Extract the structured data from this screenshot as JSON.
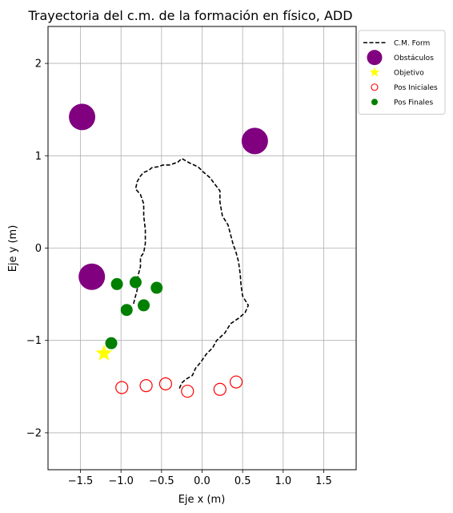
{
  "chart_data": {
    "type": "scatter",
    "title": "Trayectoria del c.m. de la formación en físico, ADD",
    "xlabel": "Eje x (m)",
    "ylabel": "Eje y (m)",
    "xlim": [
      -1.9,
      1.9
    ],
    "ylim": [
      -2.4,
      2.4
    ],
    "xticks": [
      -1.5,
      -1.0,
      -0.5,
      0.0,
      0.5,
      1.0,
      1.5
    ],
    "xtick_labels": [
      "−1.5",
      "−1.0",
      "−0.5",
      "0.0",
      "0.5",
      "1.0",
      "1.5"
    ],
    "yticks": [
      -2,
      -1,
      0,
      1,
      2
    ],
    "ytick_labels": [
      "−2",
      "−1",
      "0",
      "1",
      "2"
    ],
    "grid": true,
    "legend_position": "outside-top-right",
    "series": [
      {
        "name": "C.M. Form",
        "kind": "dashed-line",
        "color": "#000000",
        "points": [
          [
            -0.28,
            -1.52
          ],
          [
            -0.25,
            -1.46
          ],
          [
            -0.2,
            -1.42
          ],
          [
            -0.12,
            -1.38
          ],
          [
            -0.08,
            -1.3
          ],
          [
            -0.02,
            -1.24
          ],
          [
            0.05,
            -1.15
          ],
          [
            0.13,
            -1.08
          ],
          [
            0.18,
            -1.0
          ],
          [
            0.28,
            -0.92
          ],
          [
            0.35,
            -0.82
          ],
          [
            0.45,
            -0.76
          ],
          [
            0.53,
            -0.7
          ],
          [
            0.57,
            -0.62
          ],
          [
            0.5,
            -0.52
          ],
          [
            0.48,
            -0.4
          ],
          [
            0.47,
            -0.28
          ],
          [
            0.45,
            -0.15
          ],
          [
            0.42,
            -0.05
          ],
          [
            0.38,
            0.05
          ],
          [
            0.35,
            0.15
          ],
          [
            0.32,
            0.25
          ],
          [
            0.25,
            0.35
          ],
          [
            0.22,
            0.5
          ],
          [
            0.22,
            0.62
          ],
          [
            0.15,
            0.7
          ],
          [
            0.1,
            0.76
          ],
          [
            0.02,
            0.82
          ],
          [
            -0.05,
            0.88
          ],
          [
            -0.15,
            0.92
          ],
          [
            -0.25,
            0.97
          ],
          [
            -0.3,
            0.93
          ],
          [
            -0.4,
            0.9
          ],
          [
            -0.48,
            0.9
          ],
          [
            -0.55,
            0.88
          ],
          [
            -0.62,
            0.87
          ],
          [
            -0.66,
            0.84
          ],
          [
            -0.72,
            0.82
          ],
          [
            -0.76,
            0.78
          ],
          [
            -0.8,
            0.72
          ],
          [
            -0.82,
            0.64
          ],
          [
            -0.76,
            0.58
          ],
          [
            -0.72,
            0.48
          ],
          [
            -0.72,
            0.35
          ],
          [
            -0.7,
            0.2
          ],
          [
            -0.7,
            0.05
          ],
          [
            -0.72,
            -0.05
          ],
          [
            -0.76,
            -0.1
          ],
          [
            -0.76,
            -0.2
          ],
          [
            -0.79,
            -0.3
          ],
          [
            -0.8,
            -0.45
          ],
          [
            -0.83,
            -0.55
          ],
          [
            -0.85,
            -0.62
          ]
        ]
      },
      {
        "name": "Obstáculos",
        "kind": "filled-circle",
        "color": "#800080",
        "points": [
          [
            -1.48,
            1.42
          ],
          [
            0.65,
            1.16
          ],
          [
            -1.36,
            -0.31
          ]
        ]
      },
      {
        "name": "Objetivo",
        "kind": "star",
        "color": "#ffff00",
        "points": [
          [
            -1.21,
            -1.14
          ]
        ]
      },
      {
        "name": "Pos Iniciales",
        "kind": "hollow-circle",
        "color": "#ff0000",
        "points": [
          [
            -0.99,
            -1.51
          ],
          [
            -0.69,
            -1.49
          ],
          [
            -0.45,
            -1.47
          ],
          [
            -0.18,
            -1.55
          ],
          [
            0.22,
            -1.53
          ],
          [
            0.42,
            -1.45
          ]
        ]
      },
      {
        "name": "Pos Finales",
        "kind": "filled-circle-small",
        "color": "#008000",
        "points": [
          [
            -1.05,
            -0.39
          ],
          [
            -0.82,
            -0.37
          ],
          [
            -0.56,
            -0.43
          ],
          [
            -0.93,
            -0.67
          ],
          [
            -0.72,
            -0.62
          ],
          [
            -1.12,
            -1.03
          ]
        ]
      }
    ]
  }
}
